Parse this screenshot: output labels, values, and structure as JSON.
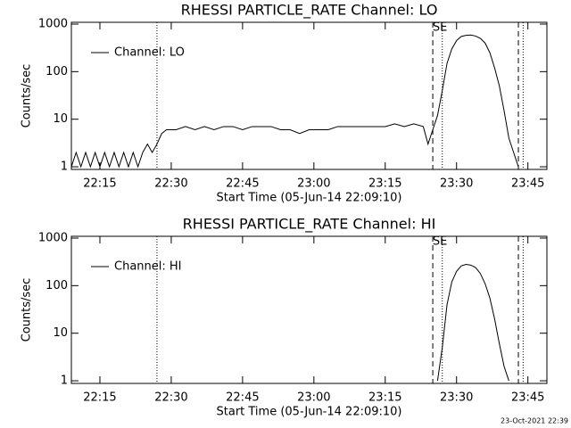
{
  "chart_data": [
    {
      "type": "line",
      "title": "RHESSI PARTICLE_RATE Channel: LO",
      "xlabel": "Start Time (05-Jun-14 22:09:10)",
      "ylabel": "Counts/sec",
      "log_y": true,
      "legend": "upper left",
      "marker_label": "SE",
      "xlim": [
        "22:09",
        "23:49"
      ],
      "xticks": [
        "22:15",
        "22:30",
        "22:45",
        "23:00",
        "23:15",
        "23:30",
        "23:45"
      ],
      "ylim": [
        0.88,
        1090
      ],
      "yticks": [
        1,
        10,
        100,
        1000
      ],
      "markers": [
        {
          "x": "22:27",
          "dash": "dotted"
        },
        {
          "x": "23:25",
          "dash": "dashed"
        },
        {
          "x": "23:27",
          "dash": "dotted"
        },
        {
          "x": "23:43",
          "dash": "dashed"
        },
        {
          "x": "23:44",
          "dash": "dotted"
        }
      ],
      "x": [
        "22:09",
        "22:10",
        "22:11",
        "22:12",
        "22:13",
        "22:14",
        "22:15",
        "22:16",
        "22:17",
        "22:18",
        "22:19",
        "22:20",
        "22:21",
        "22:22",
        "22:23",
        "22:24",
        "22:25",
        "22:26",
        "22:27",
        "22:28",
        "22:29",
        "22:31",
        "22:33",
        "22:35",
        "22:37",
        "22:39",
        "22:41",
        "22:43",
        "22:45",
        "22:47",
        "22:49",
        "22:51",
        "22:53",
        "22:55",
        "22:57",
        "22:59",
        "23:01",
        "23:03",
        "23:05",
        "23:07",
        "23:09",
        "23:11",
        "23:13",
        "23:15",
        "23:17",
        "23:19",
        "23:21",
        "23:23",
        "23:24",
        "23:25",
        "23:26",
        "23:27",
        "23:28",
        "23:29",
        "23:30",
        "23:31",
        "23:32",
        "23:33",
        "23:34",
        "23:35",
        "23:36",
        "23:37",
        "23:38",
        "23:39",
        "23:40",
        "23:41",
        "23:42",
        "23:43"
      ],
      "series": [
        {
          "name": "Channel: LO",
          "color": "#000000",
          "values": [
            1,
            2,
            1,
            2,
            1,
            2,
            1,
            2,
            1,
            2,
            1,
            2,
            1,
            2,
            1,
            2,
            3,
            2,
            3,
            5,
            6,
            6,
            7,
            6,
            7,
            6,
            7,
            7,
            6,
            7,
            7,
            7,
            6,
            6,
            5,
            6,
            6,
            6,
            7,
            7,
            7,
            7,
            7,
            7,
            8,
            7,
            8,
            7,
            3,
            6,
            12,
            40,
            150,
            300,
            450,
            550,
            580,
            590,
            560,
            500,
            400,
            250,
            120,
            50,
            15,
            4,
            2,
            1
          ]
        }
      ]
    },
    {
      "type": "line",
      "title": "RHESSI PARTICLE_RATE Channel: HI",
      "xlabel": "Start Time (05-Jun-14 22:09:10)",
      "ylabel": "Counts/sec",
      "log_y": true,
      "legend": "upper left",
      "marker_label": "SE",
      "footer": "23-Oct-2021 22:39",
      "xlim": [
        "22:09",
        "23:49"
      ],
      "xticks": [
        "22:15",
        "22:30",
        "22:45",
        "23:00",
        "23:15",
        "23:30",
        "23:45"
      ],
      "ylim": [
        0.88,
        1090
      ],
      "yticks": [
        1,
        10,
        100,
        1000
      ],
      "markers": [
        {
          "x": "22:27",
          "dash": "dotted"
        },
        {
          "x": "23:25",
          "dash": "dashed"
        },
        {
          "x": "23:27",
          "dash": "dotted"
        },
        {
          "x": "23:43",
          "dash": "dashed"
        },
        {
          "x": "23:44",
          "dash": "dotted"
        }
      ],
      "x": [
        "23:26",
        "23:27",
        "23:28",
        "23:29",
        "23:30",
        "23:31",
        "23:32",
        "23:33",
        "23:34",
        "23:35",
        "23:36",
        "23:37",
        "23:38",
        "23:39",
        "23:40",
        "23:41"
      ],
      "series": [
        {
          "name": "Channel: HI",
          "color": "#000000",
          "values": [
            1,
            5,
            40,
            120,
            200,
            260,
            280,
            270,
            240,
            180,
            110,
            55,
            20,
            6,
            2,
            1
          ]
        }
      ]
    }
  ]
}
